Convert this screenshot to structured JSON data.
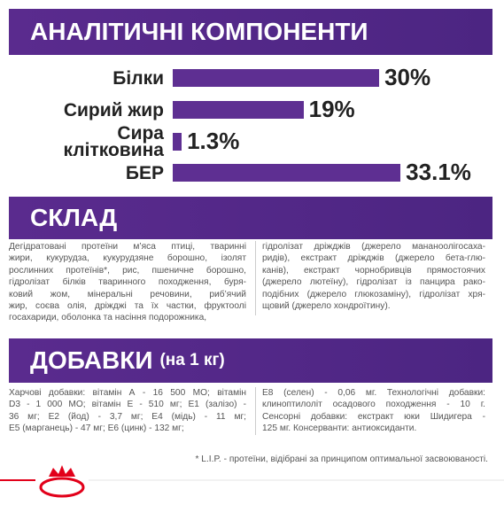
{
  "sections": {
    "analysis": {
      "title": "АНАЛІТИЧНІ КОМПОНЕНТИ"
    },
    "composition": {
      "title": "СКЛАД",
      "left": [
        "Дегідратовані протеїни м’яса птиці, тваринні",
        "жири, кукурудза, кукурудзяне борошно, ізолят",
        "рослинних протеїнів*, рис, пшеничне борошно,",
        "гідролізат білків тваринного походження, буря-",
        "ковий жом, мінеральні речовини, риб’ячий",
        "жир, соєва олія, дріжджі та їх частки, фруктоолі",
        "госахариди, оболонка та насіння подорожника,"
      ],
      "right": [
        "гідролізат дріжджів (джерело мананоолігосаха-",
        "ридів), екстракт дріжджів (джерело бета-глю-",
        "канів), екстракт чорнобривців прямостоячих",
        "(джерело лютеїну), гідролізат із панцира рако-",
        "подібних (джерело глюкозаміну), гідролізат хря-",
        "щовий (джерело хондроїтину)."
      ]
    },
    "additives": {
      "title": "ДОБАВКИ",
      "subtitle": "(на 1 кг)",
      "left": [
        "Харчові добавки: вітамін А - 16 500 МО; вітамін",
        "D3 - 1 000 МО; вітамін Е - 510 мг; Е1 (залізо) -",
        "36 мг; Е2 (йод) - 3,7 мг; Е4 (мідь) - 11 мг;",
        "Е5 (марганець) - 47 мг; Е6 (цинк) - 132 мг;"
      ],
      "right": [
        "Е8 (селен) - 0,06 мг. Технологічні добавки:",
        "клиноптилоліт осадового походження - 10 г.",
        "Сенсорні добавки: екстракт юки Шидигера -",
        "125 мг. Консерванти: антиоксиданти."
      ]
    },
    "footnote": "* L.I.P. - протеїни, відібрані за принципом оптимальної засвоюваності."
  },
  "chart_data": {
    "type": "bar",
    "orientation": "horizontal",
    "color": "#5e2f92",
    "categories": [
      "Білки",
      "Сирий жир",
      "Сира клітковина",
      "БЕР"
    ],
    "values": [
      30,
      19,
      1.3,
      33.1
    ],
    "value_labels": [
      "30%",
      "19%",
      "1.3%",
      "33.1%"
    ]
  }
}
